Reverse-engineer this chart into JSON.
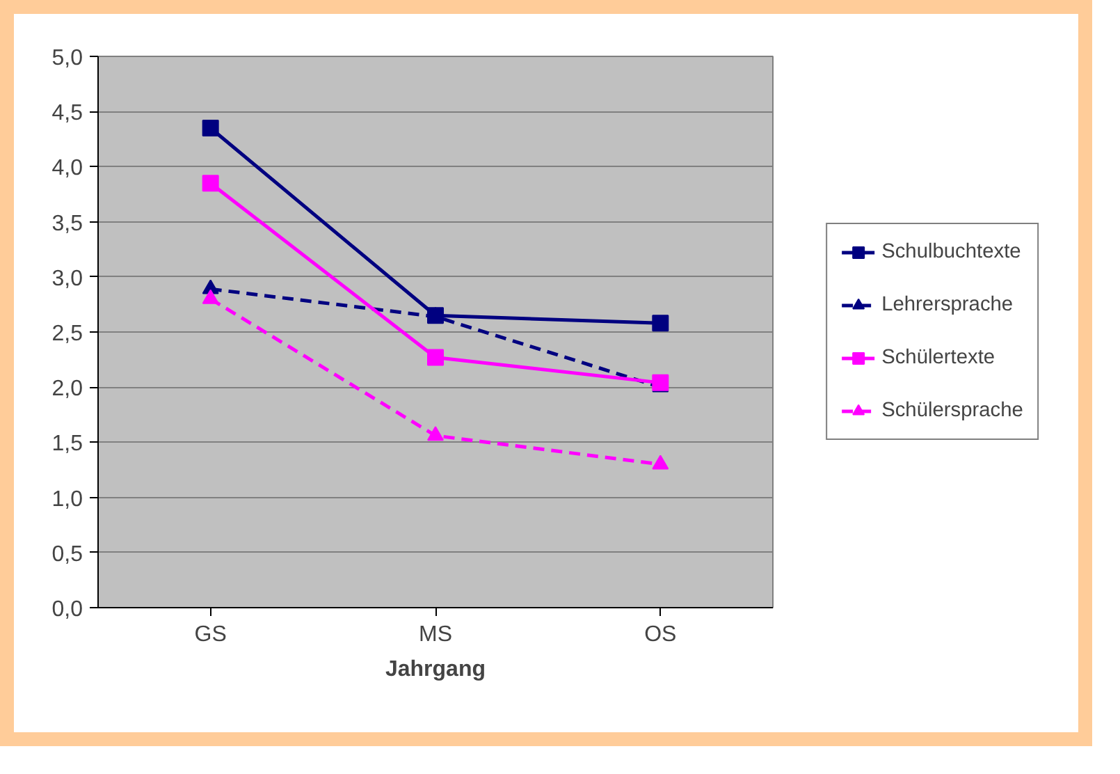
{
  "chart_data": {
    "type": "line",
    "xlabel": "Jahrgang",
    "categories": [
      "GS",
      "MS",
      "OS"
    ],
    "series": [
      {
        "name": "Schulbuchtexte",
        "color": "#000080",
        "values": [
          4.35,
          2.65,
          2.58
        ],
        "marker": "square",
        "line_style": "solid"
      },
      {
        "name": "Lehrersprache",
        "color": "#000080",
        "values": [
          2.89,
          2.64,
          2.0
        ],
        "marker": "triangle",
        "line_style": "dashed"
      },
      {
        "name": "Schülertexte",
        "color": "#ff00ff",
        "values": [
          3.85,
          2.27,
          2.04
        ],
        "marker": "square",
        "line_style": "solid"
      },
      {
        "name": "Schülersprache",
        "color": "#ff00ff",
        "values": [
          2.8,
          1.56,
          1.3
        ],
        "marker": "triangle",
        "line_style": "dashed"
      }
    ],
    "ylim": [
      0,
      5
    ],
    "yticks": [
      {
        "value": 0,
        "label": "0,0"
      },
      {
        "value": 0.5,
        "label": "0,5"
      },
      {
        "value": 1,
        "label": "1,0"
      },
      {
        "value": 1.5,
        "label": "1,5"
      },
      {
        "value": 2,
        "label": "2,0"
      },
      {
        "value": 2.5,
        "label": "2,5"
      },
      {
        "value": 3,
        "label": "3,0"
      },
      {
        "value": 3.5,
        "label": "3,5"
      },
      {
        "value": 4,
        "label": "4,0"
      },
      {
        "value": 4.5,
        "label": "4,5"
      },
      {
        "value": 5,
        "label": "5,0"
      }
    ],
    "grid": "y",
    "legend": "right"
  }
}
